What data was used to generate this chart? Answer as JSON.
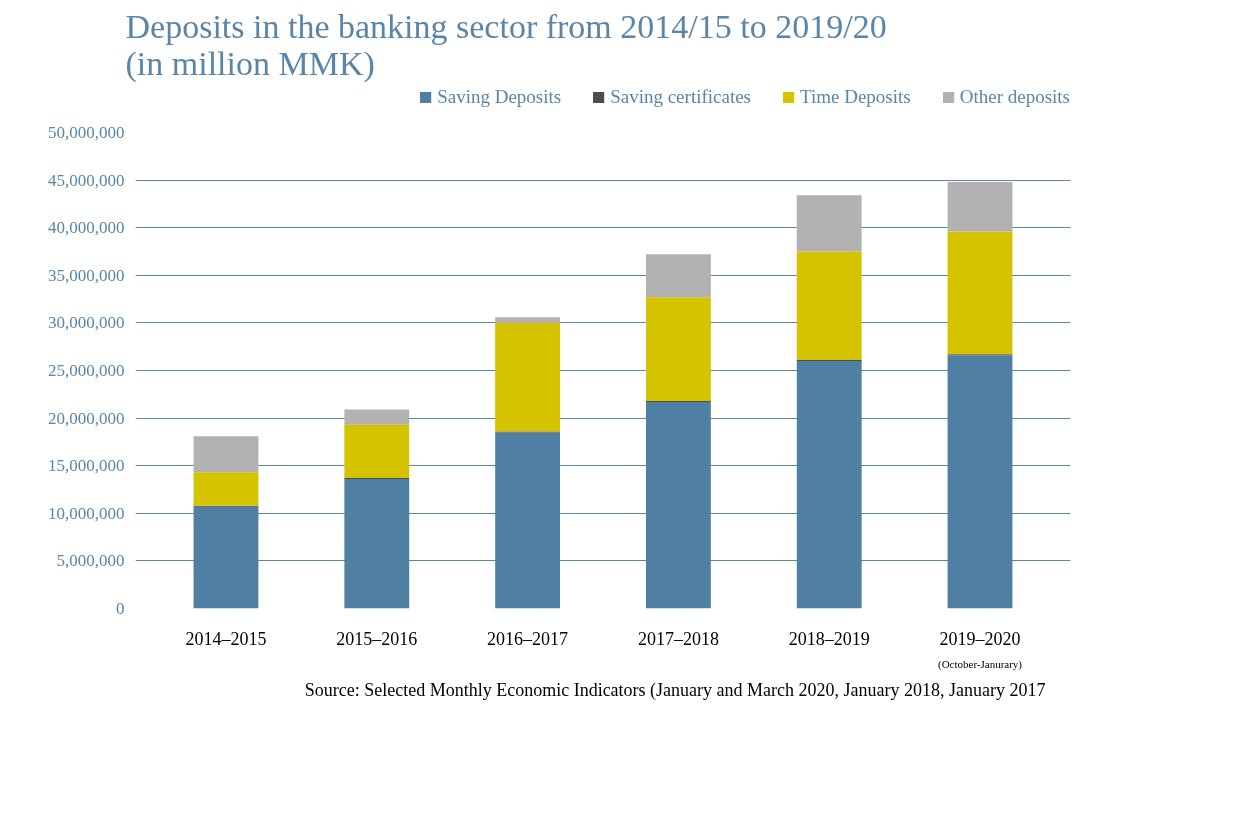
{
  "chart_data": {
    "type": "bar",
    "title": "Deposits in the banking sector from 2014/15 to 2019/20 (in million MMK)",
    "categories": [
      "2014–2015",
      "2015–2016",
      "2016–2017",
      "2017–2018",
      "2018–2019",
      "2019–2020"
    ],
    "stacked": true,
    "series": [
      {
        "name": "Saving Deposits",
        "color": "#4f7fa3",
        "values": [
          10700000,
          13600000,
          18500000,
          21700000,
          26000000,
          26600000
        ]
      },
      {
        "name": "Saving certificates",
        "color": "#4d4d4d",
        "values": [
          100000,
          100000,
          100000,
          100000,
          100000,
          100000
        ]
      },
      {
        "name": "Time Deposits",
        "color": "#d6c300",
        "values": [
          3500000,
          5600000,
          11400000,
          10900000,
          11400000,
          12900000
        ]
      },
      {
        "name": "Other deposits",
        "color": "#b2b2b2",
        "values": [
          3800000,
          1600000,
          600000,
          4500000,
          5900000,
          5200000
        ]
      }
    ],
    "ylim": [
      0,
      50000000
    ],
    "yticks": [
      {
        "value": 0,
        "label": "0"
      },
      {
        "value": 5000000,
        "label": "5,000,000"
      },
      {
        "value": 10000000,
        "label": "10,000,000"
      },
      {
        "value": 15000000,
        "label": "15,000,000"
      },
      {
        "value": 20000000,
        "label": "20,000,000"
      },
      {
        "value": 25000000,
        "label": "25,000,000"
      },
      {
        "value": 30000000,
        "label": "30,000,000"
      },
      {
        "value": 35000000,
        "label": "35,000,000"
      },
      {
        "value": 40000000,
        "label": "40,000,000"
      },
      {
        "value": 45000000,
        "label": "45,000,000"
      },
      {
        "value": 50000000,
        "label": "50,000,000"
      }
    ],
    "grid": "y",
    "legend": "top",
    "annotations": [
      "(October-Janurary)",
      "Source: Selected Monthly Economic Indicators (January and March 2020, January 2018, January 2017"
    ]
  }
}
